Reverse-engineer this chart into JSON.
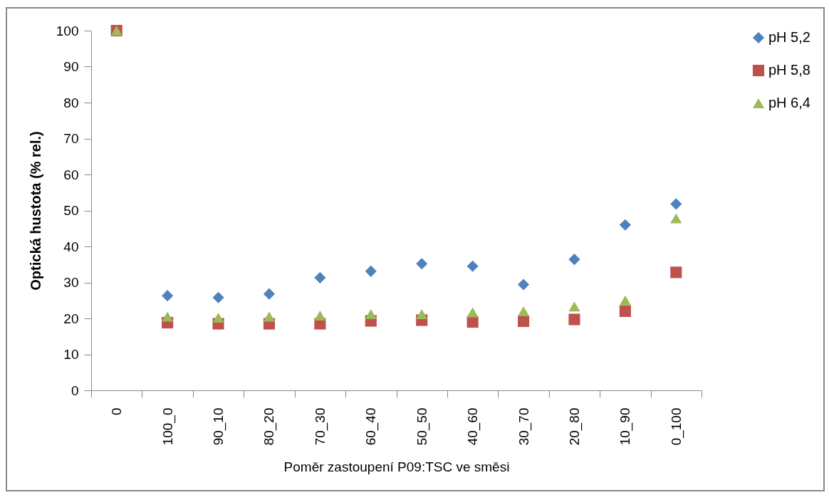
{
  "chart_data": {
    "type": "scatter",
    "xlabel": "Poměr zastoupení P09:TSC ve směsi",
    "ylabel": "Optická hustota  (% rel.)",
    "categories": [
      "0",
      "100_0",
      "90_10",
      "80_20",
      "70_30",
      "60_40",
      "50_50",
      "40_60",
      "30_70",
      "20_80",
      "10_90",
      "0_100"
    ],
    "series": [
      {
        "name": "pH 5,2",
        "color": "#4f81bd",
        "marker": "diamond",
        "values": [
          null,
          26.3,
          25.8,
          26.8,
          31.3,
          33.1,
          35.2,
          34.5,
          29.4,
          36.4,
          46.0,
          51.8
        ]
      },
      {
        "name": "pH 5,8",
        "color": "#c0504d",
        "marker": "square",
        "values": [
          100,
          18.8,
          18.5,
          18.5,
          18.5,
          19.3,
          19.5,
          19.0,
          19.2,
          19.7,
          22.0,
          32.8
        ]
      },
      {
        "name": "pH 6,4",
        "color": "#9bbb59",
        "marker": "triangle",
        "values": [
          100,
          20.5,
          20.2,
          20.5,
          20.8,
          21.2,
          21.2,
          21.7,
          22.0,
          23.3,
          25.0,
          47.8
        ]
      }
    ],
    "ylim": [
      0,
      100
    ],
    "yticks": [
      0,
      10,
      20,
      30,
      40,
      50,
      60,
      70,
      80,
      90,
      100
    ],
    "grid": false,
    "legend": "right"
  }
}
